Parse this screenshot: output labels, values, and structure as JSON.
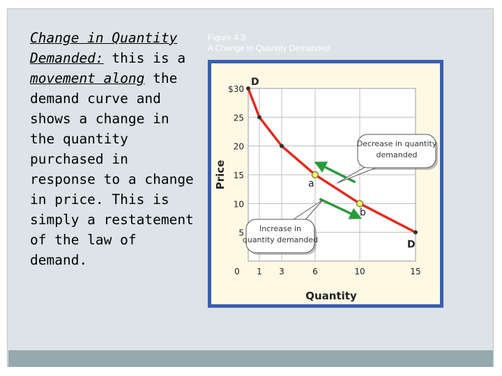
{
  "slide": {
    "heading": "Change in Quantity Demanded:",
    "sentence_intro": "this is a",
    "sentence_emphasis": "movement along",
    "sentence_rest": "the demand curve and shows a change in the quantity purchased in response to a change in price. This is simply a restatement of the law of demand.",
    "figure_number": "Figure 4.3",
    "figure_title": "A Change in Quantity Demanded"
  },
  "chart_data": {
    "type": "line",
    "xlabel": "Quantity",
    "ylabel": "Price",
    "xlim": [
      0,
      15
    ],
    "ylim": [
      0,
      30
    ],
    "x_ticks": [
      "0",
      "1",
      "3",
      "6",
      "10",
      "15"
    ],
    "x_tick_values": [
      0,
      1,
      3,
      6,
      10,
      15
    ],
    "y_ticks": [
      "$30",
      "25",
      "20",
      "15",
      "10",
      "5"
    ],
    "y_tick_values": [
      30,
      25,
      20,
      15,
      10,
      5
    ],
    "grid": true,
    "curve_labels": [
      "D",
      "D"
    ],
    "curve": [
      {
        "x": 0,
        "y": 30
      },
      {
        "x": 1,
        "y": 25
      },
      {
        "x": 3,
        "y": 20
      },
      {
        "x": 6,
        "y": 15
      },
      {
        "x": 10,
        "y": 10
      },
      {
        "x": 15,
        "y": 5
      }
    ],
    "highlighted_points": [
      {
        "label": "a",
        "x": 6,
        "y": 15
      },
      {
        "label": "b",
        "x": 10,
        "y": 10
      }
    ],
    "callouts": [
      {
        "line1": "Decrease in quantity",
        "line2": "demanded"
      },
      {
        "line1": "Increase in",
        "line2": "quantity demanded"
      }
    ],
    "colors": {
      "curve": "#e8281c",
      "arrow": "#2a9a3c",
      "frame": "#3a5fb0",
      "point": "#f2ee6a"
    }
  }
}
